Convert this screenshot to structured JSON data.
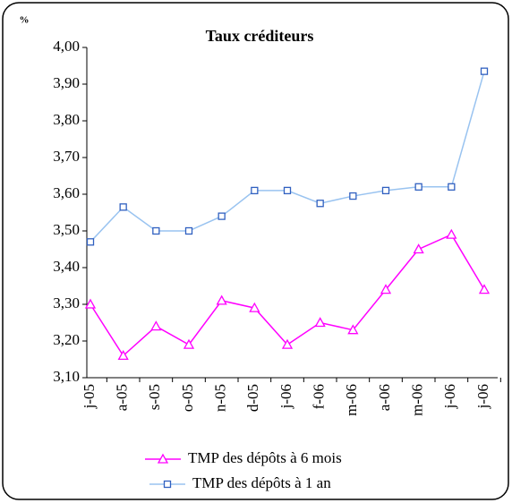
{
  "chart_data": {
    "type": "line",
    "title": "Taux créditeurs",
    "y_label": "%",
    "categories": [
      "j-05",
      "a-05",
      "s-05",
      "o-05",
      "n-05",
      "d-05",
      "j-06",
      "f-06",
      "m-06",
      "a-06",
      "m-06",
      "j-06",
      "j-06"
    ],
    "series": [
      {
        "name": "TMP des dépôts à 6 mois",
        "color": "#ff00ff",
        "marker": "triangle",
        "values": [
          3.3,
          3.16,
          3.24,
          3.19,
          3.31,
          3.29,
          3.19,
          3.25,
          3.23,
          3.34,
          3.45,
          3.49,
          3.34
        ]
      },
      {
        "name": "TMP des dépôts à 1 an",
        "color": "#99c3f0",
        "marker": "square",
        "values": [
          3.47,
          3.565,
          3.5,
          3.5,
          3.54,
          3.61,
          3.61,
          3.575,
          3.595,
          3.61,
          3.62,
          3.62,
          3.935
        ]
      }
    ],
    "ylim": [
      3.1,
      4.0
    ],
    "yticks": [
      {
        "value": 3.1,
        "label": "3,10"
      },
      {
        "value": 3.2,
        "label": "3,20"
      },
      {
        "value": 3.3,
        "label": "3,30"
      },
      {
        "value": 3.4,
        "label": "3,40"
      },
      {
        "value": 3.5,
        "label": "3,50"
      },
      {
        "value": 3.6,
        "label": "3,60"
      },
      {
        "value": 3.7,
        "label": "3,70"
      },
      {
        "value": 3.8,
        "label": "3,80"
      },
      {
        "value": 3.9,
        "label": "3,90"
      },
      {
        "value": 4.0,
        "label": "4,00"
      }
    ],
    "grid": false
  }
}
